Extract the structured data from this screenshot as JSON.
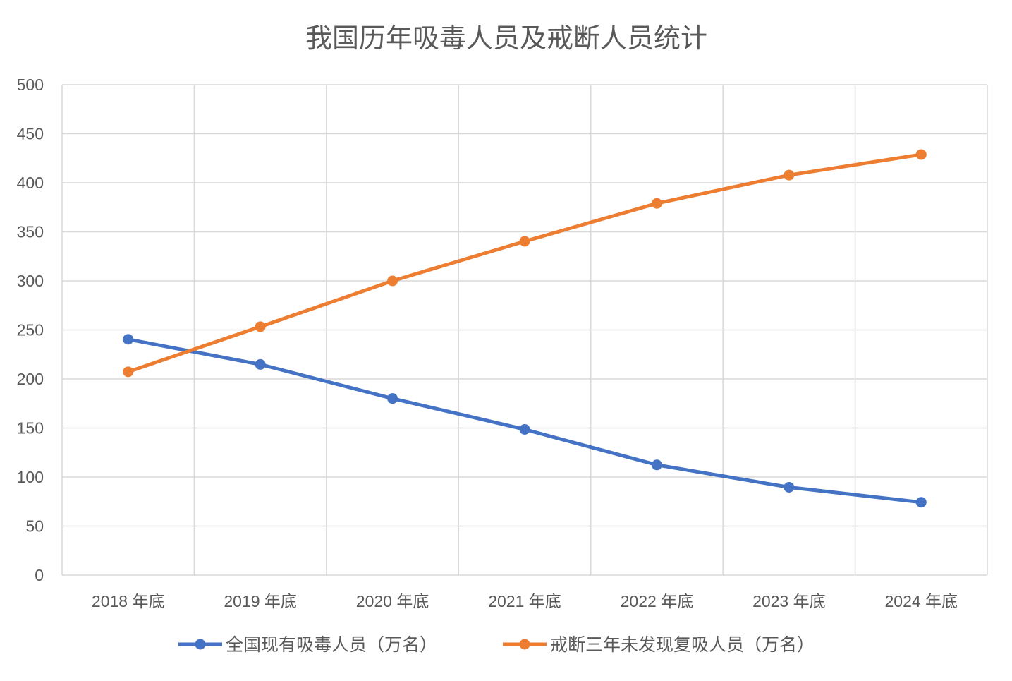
{
  "chart_data": {
    "type": "line",
    "title": "我国历年吸毒人员及戒断人员统计",
    "categories": [
      "2018 年底",
      "2019 年底",
      "2020 年底",
      "2021 年底",
      "2022 年底",
      "2023 年底",
      "2024 年底"
    ],
    "series": [
      {
        "name": "全国现有吸毒人员（万名）",
        "color": "#4472C4",
        "values": [
          240.4,
          214.8,
          180.1,
          148.6,
          112.4,
          89.6,
          74.3
        ]
      },
      {
        "name": "戒断三年未发现复吸人员（万名）",
        "color": "#ED7D31",
        "values": [
          207.3,
          253.3,
          300,
          340.3,
          379,
          407.8,
          428.8
        ]
      }
    ],
    "ylim": [
      0,
      500
    ],
    "yticks": [
      "0",
      "50",
      "100",
      "150",
      "200",
      "250",
      "300",
      "350",
      "400",
      "450",
      "500"
    ],
    "grid": true,
    "legend": "bottom",
    "xlabel": "",
    "ylabel": ""
  }
}
